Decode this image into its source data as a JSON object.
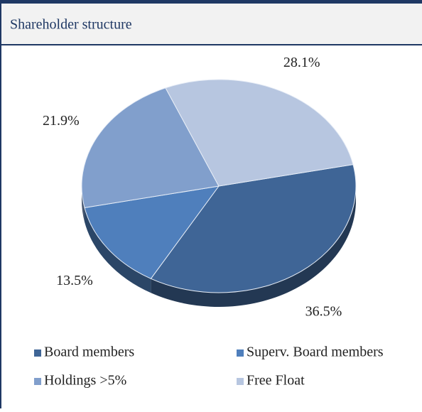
{
  "chart_data": {
    "type": "pie",
    "title": "Shareholder structure",
    "categories": [
      "Board members",
      "Superv. Board members",
      "Holdings >5%",
      "Free Float"
    ],
    "values": [
      36.5,
      13.5,
      21.9,
      28.1
    ],
    "value_labels": [
      "36.5%",
      "13.5%",
      "21.9%",
      "28.1%"
    ],
    "colors": [
      "#3f6596",
      "#4f7fbc",
      "#819fcc",
      "#b7c6e0"
    ],
    "legend": "bottom"
  }
}
